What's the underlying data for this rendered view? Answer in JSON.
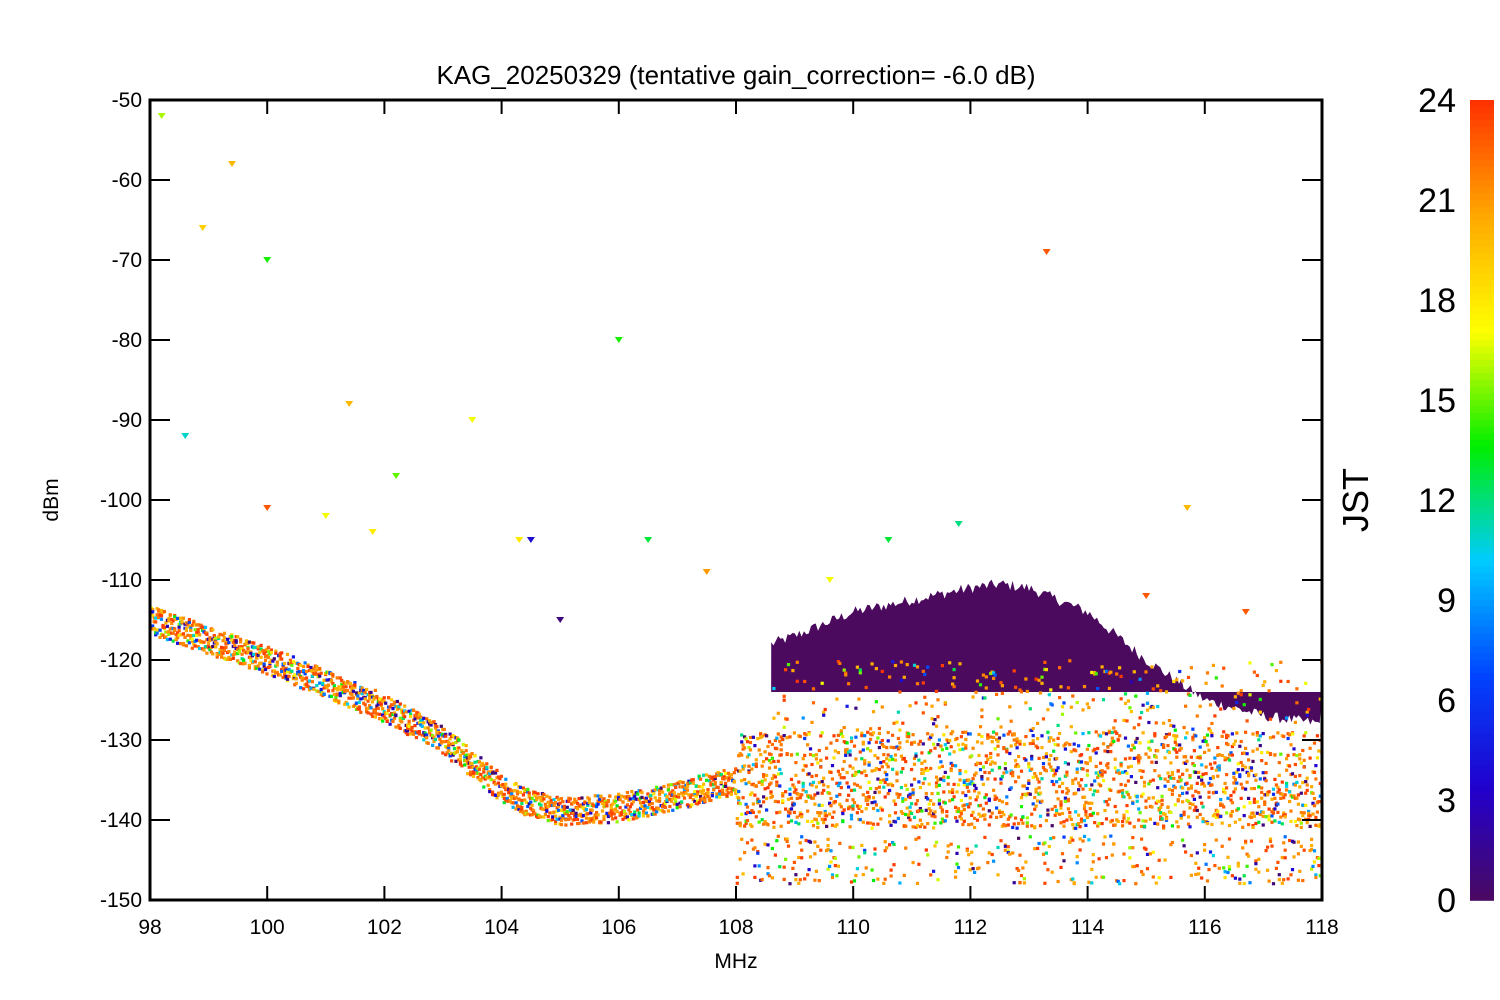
{
  "chart_data": {
    "type": "scatter",
    "title": "KAG_20250329 (tentative gain_correction= -6.0 dB)",
    "xlabel": "MHz",
    "ylabel": "dBm",
    "xlim": [
      98,
      118
    ],
    "ylim": [
      -150,
      -50
    ],
    "x_ticks": [
      "98",
      "100",
      "102",
      "104",
      "106",
      "108",
      "110",
      "112",
      "114",
      "116",
      "118"
    ],
    "y_ticks": [
      "-50",
      "-60",
      "-70",
      "-80",
      "-90",
      "-100",
      "-110",
      "-120",
      "-130",
      "-140",
      "-150"
    ],
    "colorbar": {
      "label": "JST",
      "range": [
        0,
        24
      ],
      "ticks": [
        "24",
        "21",
        "18",
        "15",
        "12",
        "9",
        "6",
        "3",
        "0"
      ],
      "colormap": [
        "#4b0a5e",
        "#2200cc",
        "#0044ff",
        "#00ccff",
        "#00ee00",
        "#ffff00",
        "#ffaa00",
        "#ff3300"
      ]
    },
    "noise_floor": {
      "x": [
        98,
        99,
        100,
        101,
        102,
        103,
        104,
        104.5,
        105,
        106,
        107,
        108,
        110,
        112,
        114,
        116,
        118
      ],
      "y": [
        -115,
        -117.5,
        -120,
        -123,
        -126,
        -130,
        -136,
        -138,
        -139,
        -138.5,
        -137,
        -135,
        -135,
        -135,
        -135,
        -135,
        -135
      ]
    },
    "wideband_hump_jst0": {
      "x": [
        108.6,
        109,
        110,
        111,
        112,
        112.5,
        113,
        114,
        115,
        116,
        117,
        118
      ],
      "top_dbm": [
        -118,
        -117,
        -114,
        -112.5,
        -111,
        -110.5,
        -111,
        -114,
        -120,
        -125,
        -127,
        -128
      ]
    },
    "carriers": [
      {
        "freq": 98.2,
        "peak_dbm": -52,
        "jst": 16
      },
      {
        "freq": 98.6,
        "peak_dbm": -92,
        "jst": 11
      },
      {
        "freq": 98.9,
        "peak_dbm": -66,
        "jst": 19
      },
      {
        "freq": 99.4,
        "peak_dbm": -58,
        "jst": 20
      },
      {
        "freq": 100.0,
        "peak_dbm": -70,
        "jst": 14
      },
      {
        "freq": 100.0,
        "peak_dbm": -101,
        "jst": 23
      },
      {
        "freq": 101.0,
        "peak_dbm": -102,
        "jst": 17
      },
      {
        "freq": 101.4,
        "peak_dbm": -88,
        "jst": 20
      },
      {
        "freq": 101.8,
        "peak_dbm": -104,
        "jst": 18
      },
      {
        "freq": 102.2,
        "peak_dbm": -97,
        "jst": 15
      },
      {
        "freq": 103.5,
        "peak_dbm": -90,
        "jst": 17
      },
      {
        "freq": 104.3,
        "peak_dbm": -105,
        "jst": 18
      },
      {
        "freq": 104.5,
        "peak_dbm": -105,
        "jst": 4
      },
      {
        "freq": 105.0,
        "peak_dbm": -115,
        "jst": 1
      },
      {
        "freq": 106.0,
        "peak_dbm": -80,
        "jst": 14
      },
      {
        "freq": 106.5,
        "peak_dbm": -105,
        "jst": 13
      },
      {
        "freq": 107.5,
        "peak_dbm": -109,
        "jst": 21
      },
      {
        "freq": 109.6,
        "peak_dbm": -110,
        "jst": 17
      },
      {
        "freq": 110.6,
        "peak_dbm": -105,
        "jst": 13
      },
      {
        "freq": 111.8,
        "peak_dbm": -103,
        "jst": 12
      },
      {
        "freq": 113.3,
        "peak_dbm": -69,
        "jst": 23
      },
      {
        "freq": 115.0,
        "peak_dbm": -112,
        "jst": 23
      },
      {
        "freq": 115.7,
        "peak_dbm": -101,
        "jst": 20
      },
      {
        "freq": 116.7,
        "peak_dbm": -114,
        "jst": 23
      }
    ],
    "grid": false,
    "legend": "colorbar-right"
  }
}
